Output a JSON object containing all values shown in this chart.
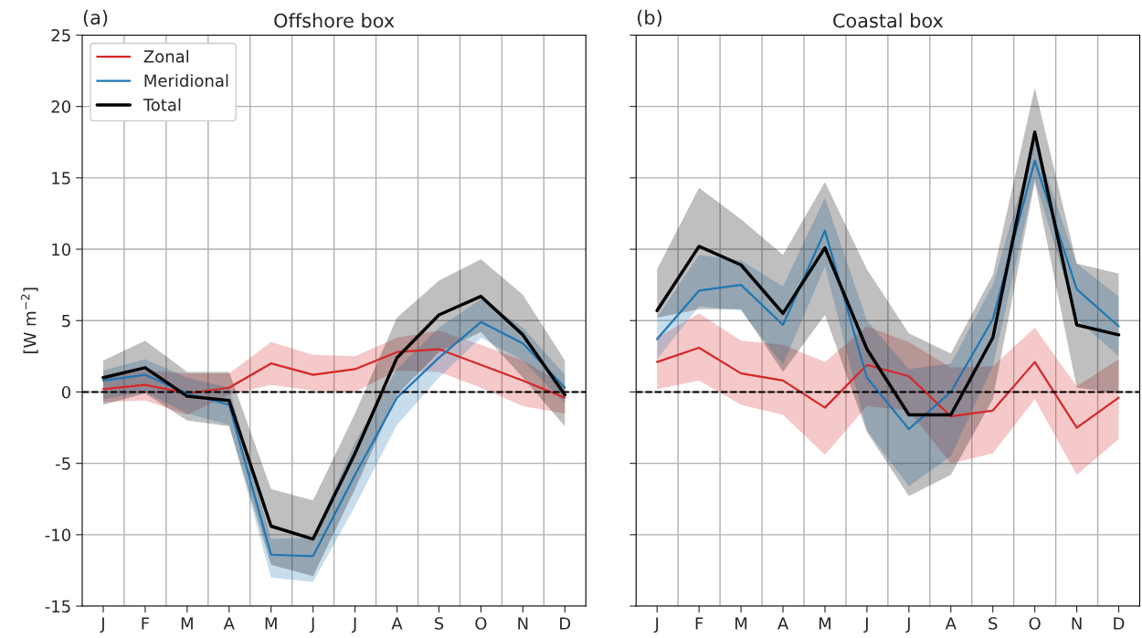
{
  "chart_data": [
    {
      "type": "line",
      "title": "Offshore box",
      "annotations": [
        "(a)"
      ],
      "ylabel": "[W m$^{−2}$]",
      "categories": [
        "J",
        "F",
        "M",
        "A",
        "M",
        "J",
        "J",
        "A",
        "S",
        "O",
        "N",
        "D"
      ],
      "ylim": [
        -15,
        25
      ],
      "yticks": [
        -15,
        -10,
        -5,
        0,
        5,
        10,
        15,
        20,
        25
      ],
      "grid": true,
      "legend": "top left",
      "ref_lines": [
        {
          "axis": "y",
          "value": 0,
          "color": "#000000",
          "line_style": "dashed"
        }
      ],
      "series": [
        {
          "name": "Zonal",
          "color": "#d62728",
          "values": [
            0.2,
            0.5,
            -0.1,
            0.3,
            2.0,
            1.2,
            1.6,
            2.8,
            3.0,
            1.9,
            0.8,
            -0.4
          ],
          "lower": [
            -0.7,
            -0.6,
            -1.6,
            -0.2,
            0.5,
            0.1,
            0.0,
            1.5,
            1.4,
            0.3,
            -1.0,
            -1.5
          ],
          "upper": [
            1.0,
            1.5,
            1.3,
            1.3,
            3.5,
            2.6,
            2.5,
            3.8,
            4.3,
            3.3,
            2.2,
            0.5
          ]
        },
        {
          "name": "Meridional",
          "color": "#1f77b4",
          "values": [
            0.8,
            1.2,
            -0.1,
            -0.9,
            -11.4,
            -11.5,
            -5.8,
            -0.4,
            2.4,
            4.9,
            3.4,
            0.3
          ],
          "lower": [
            -0.5,
            0.0,
            -1.5,
            -2.3,
            -13.0,
            -13.3,
            -8.0,
            -2.3,
            1.0,
            3.8,
            2.2,
            -0.8
          ],
          "upper": [
            1.5,
            2.3,
            1.0,
            0.3,
            -10.3,
            -10.2,
            -3.5,
            1.6,
            4.5,
            6.5,
            4.5,
            1.2
          ]
        },
        {
          "name": "Total",
          "color": "#000000",
          "values": [
            1.0,
            1.7,
            -0.3,
            -0.6,
            -9.4,
            -10.3,
            -4.3,
            2.4,
            5.4,
            6.7,
            4.0,
            -0.2
          ],
          "lower": [
            -0.9,
            -0.1,
            -2.0,
            -2.4,
            -12.1,
            -12.9,
            -6.8,
            -0.2,
            2.8,
            4.2,
            1.0,
            -2.4
          ],
          "upper": [
            2.2,
            3.6,
            1.4,
            1.4,
            -6.8,
            -7.6,
            -1.5,
            5.2,
            7.8,
            9.3,
            6.8,
            2.2
          ]
        }
      ]
    },
    {
      "type": "line",
      "title": "Coastal box",
      "annotations": [
        "(b)"
      ],
      "categories": [
        "J",
        "F",
        "M",
        "A",
        "M",
        "J",
        "J",
        "A",
        "S",
        "O",
        "N",
        "D"
      ],
      "ylim": [
        -15,
        25
      ],
      "yticks": [
        -15,
        -10,
        -5,
        0,
        5,
        10,
        15,
        20,
        25
      ],
      "tick_labels": "x",
      "grid": true,
      "ref_lines": [
        {
          "axis": "y",
          "value": 0,
          "color": "#000000",
          "line_style": "dashed"
        }
      ],
      "series": [
        {
          "color": "#d62728",
          "values": [
            2.1,
            3.1,
            1.3,
            0.8,
            -1.1,
            1.9,
            1.1,
            -1.7,
            -1.3,
            2.1,
            -2.5,
            -0.4
          ],
          "lower": [
            0.2,
            0.8,
            -0.9,
            -1.6,
            -4.4,
            -1.0,
            -1.3,
            -5.0,
            -4.3,
            -0.5,
            -5.8,
            -3.3
          ],
          "upper": [
            3.8,
            5.5,
            3.6,
            3.3,
            2.1,
            4.6,
            3.5,
            1.7,
            1.8,
            4.5,
            0.4,
            2.3
          ]
        },
        {
          "color": "#1f77b4",
          "values": [
            3.7,
            7.1,
            7.5,
            4.7,
            11.3,
            1.0,
            -2.6,
            0.0,
            5.1,
            16.2,
            7.2,
            4.6
          ],
          "lower": [
            2.3,
            6.0,
            5.7,
            1.9,
            8.8,
            -2.7,
            -6.6,
            -4.5,
            1.8,
            14.9,
            5.1,
            2.5
          ],
          "upper": [
            5.2,
            9.6,
            9.2,
            7.4,
            13.6,
            5.0,
            1.6,
            2.0,
            7.5,
            17.6,
            9.0,
            6.7
          ]
        },
        {
          "color": "#000000",
          "values": [
            5.7,
            10.2,
            8.9,
            5.5,
            10.1,
            3.0,
            -1.6,
            -1.6,
            3.8,
            18.2,
            4.7,
            4.0
          ],
          "lower": [
            5.2,
            5.8,
            5.8,
            1.4,
            5.4,
            -2.8,
            -7.3,
            -5.8,
            -0.5,
            14.7,
            0.3,
            -0.1
          ],
          "upper": [
            8.6,
            14.3,
            12.1,
            9.6,
            14.7,
            8.6,
            4.1,
            2.7,
            8.2,
            21.3,
            9.0,
            8.3
          ]
        }
      ]
    }
  ]
}
